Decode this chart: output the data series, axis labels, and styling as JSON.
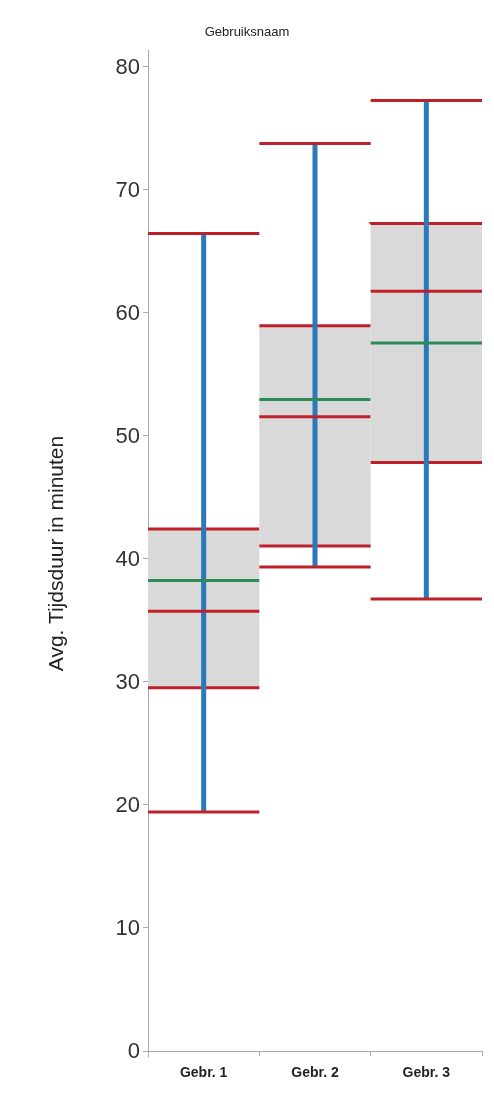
{
  "chart_data": {
    "type": "box",
    "title": "Gebruiksnaam",
    "ylabel": "Avg. Tijdsduur in minuten",
    "categories": [
      "Gebr. 1",
      "Gebr. 2",
      "Gebr. 3"
    ],
    "ylim": [
      -0.5,
      81.3
    ],
    "yticks": [
      0,
      10,
      20,
      30,
      40,
      50,
      60,
      70,
      80
    ],
    "grid": false,
    "series": [
      {
        "color": "#d9d9d9",
        "boxes": [
          {
            "low": 19.4,
            "q1": 29.5,
            "median": 35.7,
            "q3": 42.4,
            "high": 66.4,
            "mean": 38.2
          },
          {
            "low": 39.3,
            "q1": 41.0,
            "median": 51.5,
            "q3": 58.9,
            "high": 73.7,
            "mean": 52.9
          },
          {
            "low": 36.7,
            "q1": 47.8,
            "median": 61.7,
            "q3": 67.2,
            "high": 77.2,
            "mean": 57.5
          }
        ]
      }
    ]
  }
}
